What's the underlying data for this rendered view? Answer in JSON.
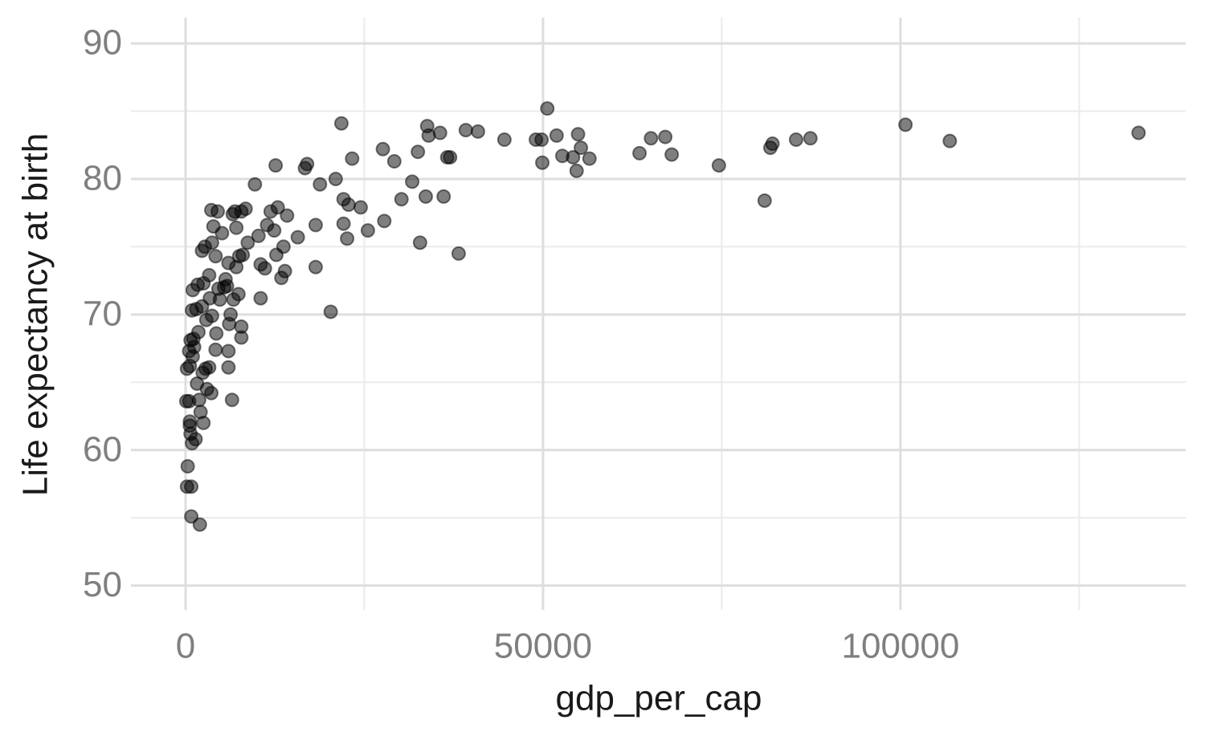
{
  "chart_data": {
    "type": "scatter",
    "xlabel": "gdp_per_cap",
    "ylabel": "Life expectancy at birth",
    "xlim": [
      -7640,
      139900
    ],
    "ylim": [
      48.2,
      91.9
    ],
    "xticks": [
      0,
      50000,
      100000
    ],
    "yticks": [
      50,
      60,
      70,
      80,
      90
    ],
    "xminor": [
      25000,
      75000,
      125000
    ],
    "yminor": [
      55,
      65,
      75,
      85
    ],
    "grid": true,
    "color": "#000000",
    "opacity": 0.5,
    "x": [
      133300,
      106900,
      100700,
      87400,
      85400,
      82100,
      81800,
      81000,
      74600,
      68000,
      67100,
      65100,
      63500,
      56500,
      55300,
      54900,
      54700,
      54200,
      52700,
      51900,
      50600,
      49900,
      49800,
      49000,
      44600,
      40900,
      39200,
      38200,
      37000,
      36600,
      36100,
      35600,
      34000,
      33800,
      33600,
      32800,
      32500,
      31700,
      30200,
      29200,
      27600,
      27800,
      25500,
      24500,
      23300,
      22800,
      22600,
      22100,
      22100,
      21800,
      21000,
      20300,
      18800,
      18200,
      18200,
      17000,
      16700,
      15700,
      14200,
      13900,
      13700,
      13400,
      12900,
      12700,
      12600,
      12400,
      11900,
      11400,
      11100,
      10500,
      10500,
      10200,
      9700,
      8700,
      8400,
      8000,
      7800,
      7500,
      7800,
      7800,
      7400,
      7100,
      7100,
      6900,
      6700,
      6600,
      6500,
      6300,
      6100,
      6000,
      6000,
      6000,
      5800,
      5600,
      5400,
      5100,
      4800,
      4600,
      4500,
      4300,
      4200,
      4200,
      3900,
      3700,
      3700,
      3600,
      3600,
      3400,
      3300,
      3300,
      3000,
      2900,
      2800,
      2700,
      2500,
      2500,
      2400,
      2300,
      2300,
      2100,
      2000,
      1900,
      1800,
      1700,
      1600,
      1500,
      1400,
      1200,
      1100,
      1000,
      1000,
      900,
      900,
      800,
      800,
      700,
      600,
      600,
      500,
      300,
      200,
      100,
      500,
      700,
      600,
      200
    ],
    "y": [
      83.4,
      82.8,
      84.0,
      83.0,
      82.9,
      82.6,
      82.3,
      78.4,
      81.0,
      81.8,
      83.1,
      83.0,
      81.9,
      81.5,
      82.3,
      83.3,
      80.6,
      81.6,
      81.7,
      83.2,
      85.2,
      81.2,
      82.9,
      82.9,
      82.9,
      83.5,
      83.6,
      74.5,
      81.6,
      81.6,
      78.7,
      83.4,
      83.2,
      83.9,
      78.7,
      75.3,
      82.0,
      79.8,
      78.5,
      81.3,
      82.2,
      76.9,
      76.2,
      77.9,
      81.5,
      78.1,
      75.6,
      76.7,
      78.5,
      84.1,
      80.0,
      70.2,
      79.6,
      76.6,
      73.5,
      81.1,
      80.8,
      75.7,
      77.3,
      73.2,
      75.0,
      72.7,
      77.9,
      74.4,
      81.0,
      76.2,
      77.6,
      76.6,
      73.4,
      73.7,
      71.2,
      75.8,
      79.6,
      75.3,
      77.8,
      74.4,
      77.6,
      74.3,
      68.3,
      69.1,
      71.5,
      76.4,
      73.5,
      77.6,
      71.1,
      77.4,
      63.7,
      70.0,
      69.3,
      67.3,
      66.1,
      73.8,
      72.1,
      72.6,
      72.0,
      76.0,
      71.1,
      71.9,
      77.6,
      68.6,
      67.4,
      74.3,
      76.5,
      75.3,
      69.9,
      64.2,
      77.7,
      71.2,
      66.1,
      72.9,
      64.5,
      69.6,
      66.0,
      75.0,
      62.0,
      72.3,
      65.7,
      70.6,
      74.7,
      62.8,
      54.5,
      63.7,
      68.7,
      72.2,
      64.9,
      70.4,
      60.8,
      67.6,
      68.2,
      71.8,
      66.9,
      70.3,
      60.5,
      55.1,
      57.3,
      61.2,
      62.1,
      66.2,
      63.6,
      58.8,
      66.0,
      63.6,
      67.3,
      68.1,
      61.8,
      57.3
    ]
  }
}
